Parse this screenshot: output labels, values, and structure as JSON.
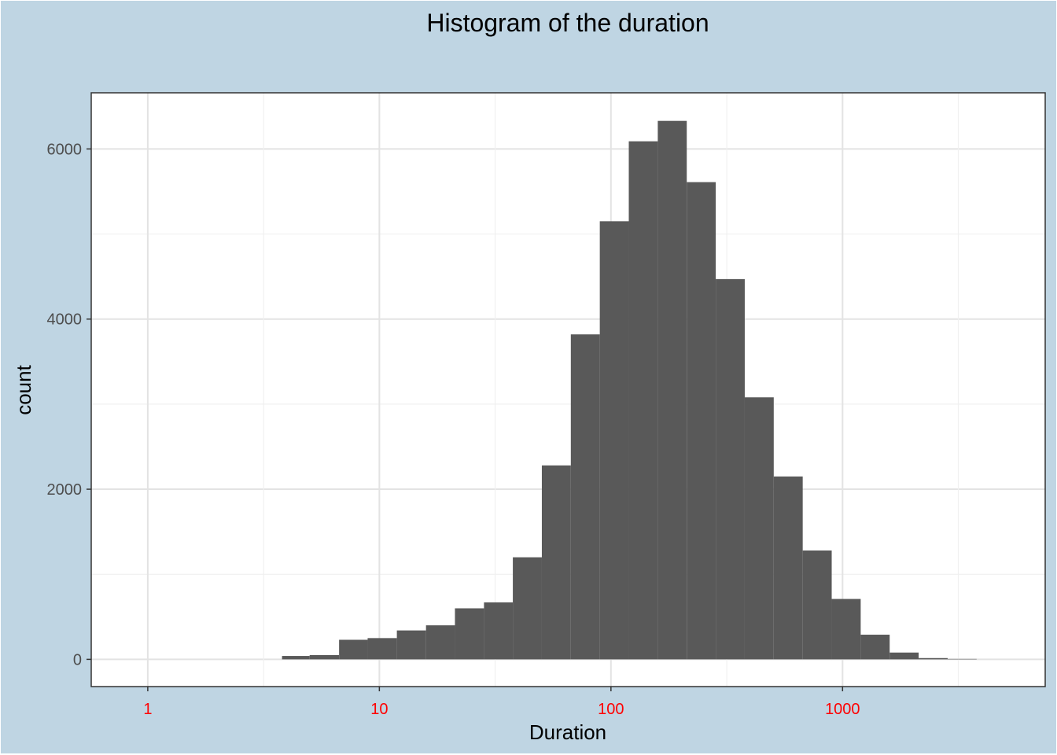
{
  "chart_data": {
    "type": "bar",
    "title": "Histogram of the duration",
    "xlabel": "Duration",
    "ylabel": "count",
    "x_scale": "log10",
    "xlim": [
      0.57,
      7500
    ],
    "ylim": [
      -320,
      6660
    ],
    "x_ticks": [
      {
        "value": 1,
        "label": "1"
      },
      {
        "value": 10,
        "label": "10"
      },
      {
        "value": 100,
        "label": "100"
      },
      {
        "value": 1000,
        "label": "1000"
      }
    ],
    "y_ticks": [
      {
        "value": 0,
        "label": "0"
      },
      {
        "value": 2000,
        "label": "2000"
      },
      {
        "value": 4000,
        "label": "4000"
      },
      {
        "value": 6000,
        "label": "6000"
      }
    ],
    "bins": [
      {
        "x0": 3.8,
        "x1": 5.0,
        "count": 40
      },
      {
        "x0": 5.0,
        "x1": 6.7,
        "count": 50
      },
      {
        "x0": 6.7,
        "x1": 8.9,
        "count": 230
      },
      {
        "x0": 8.9,
        "x1": 11.9,
        "count": 250
      },
      {
        "x0": 11.9,
        "x1": 15.9,
        "count": 340
      },
      {
        "x0": 15.9,
        "x1": 21.2,
        "count": 400
      },
      {
        "x0": 21.2,
        "x1": 28.3,
        "count": 600
      },
      {
        "x0": 28.3,
        "x1": 37.7,
        "count": 670
      },
      {
        "x0": 37.7,
        "x1": 50.3,
        "count": 1200
      },
      {
        "x0": 50.3,
        "x1": 67.1,
        "count": 2280
      },
      {
        "x0": 67.1,
        "x1": 89.5,
        "count": 3820
      },
      {
        "x0": 89.5,
        "x1": 119.4,
        "count": 5150
      },
      {
        "x0": 119.4,
        "x1": 159.3,
        "count": 6090
      },
      {
        "x0": 159.3,
        "x1": 212.5,
        "count": 6330
      },
      {
        "x0": 212.5,
        "x1": 283.5,
        "count": 5610
      },
      {
        "x0": 283.5,
        "x1": 378.2,
        "count": 4470
      },
      {
        "x0": 378.2,
        "x1": 504.5,
        "count": 3080
      },
      {
        "x0": 504.5,
        "x1": 673.0,
        "count": 2150
      },
      {
        "x0": 673.0,
        "x1": 897.8,
        "count": 1280
      },
      {
        "x0": 897.8,
        "x1": 1197.7,
        "count": 710
      },
      {
        "x0": 1197.7,
        "x1": 1597.7,
        "count": 290
      },
      {
        "x0": 1597.7,
        "x1": 2131.4,
        "count": 80
      },
      {
        "x0": 2131.4,
        "x1": 2843.3,
        "count": 15
      },
      {
        "x0": 2843.3,
        "x1": 3793.0,
        "count": 5
      }
    ],
    "bar_color": "#595959",
    "grid": true,
    "panel_background": "#ffffff",
    "plot_background": "#bfd5e3",
    "x_tick_color": "#ff0000"
  }
}
